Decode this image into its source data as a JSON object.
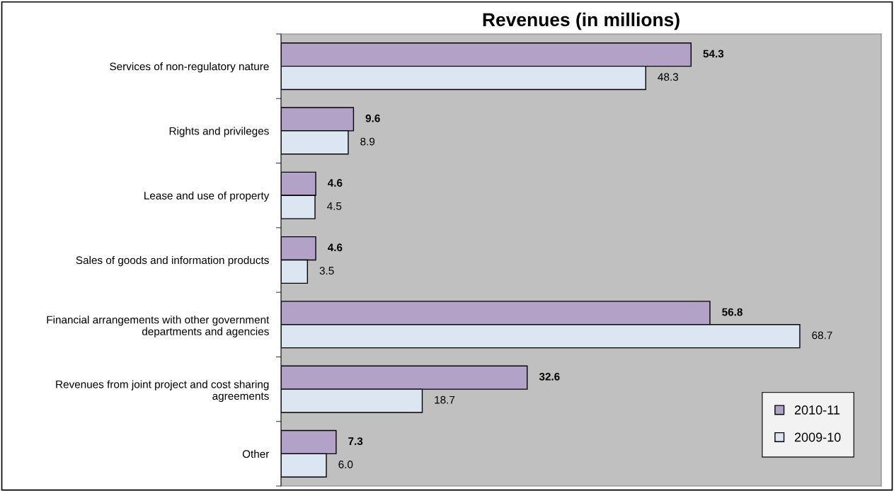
{
  "chart_data": {
    "type": "bar",
    "orientation": "horizontal",
    "title": "Revenues (in millions)",
    "categories": [
      "Services of non-regulatory nature",
      "Rights and privileges",
      "Lease and use of property",
      "Sales of goods and information products",
      "Financial arrangements with other government\ndepartments and agencies",
      "Revenues from joint project and cost sharing\nagreements",
      "Other"
    ],
    "series": [
      {
        "name": "2010-11",
        "color": "#b3a2c7",
        "values": [
          54.3,
          9.6,
          4.6,
          4.6,
          56.8,
          32.6,
          7.3
        ],
        "value_labels": [
          "54.3",
          "9.6",
          "4.6",
          "4.6",
          "56.8",
          "32.6",
          "7.3"
        ]
      },
      {
        "name": "2009-10",
        "color": "#dce6f2",
        "values": [
          48.3,
          8.9,
          4.5,
          3.5,
          68.7,
          18.7,
          6.0
        ],
        "value_labels": [
          "48.3",
          "8.9",
          "4.5",
          "3.5",
          "68.7",
          "18.7",
          "6.0"
        ]
      }
    ],
    "legend": "bottom right",
    "grid": false
  }
}
